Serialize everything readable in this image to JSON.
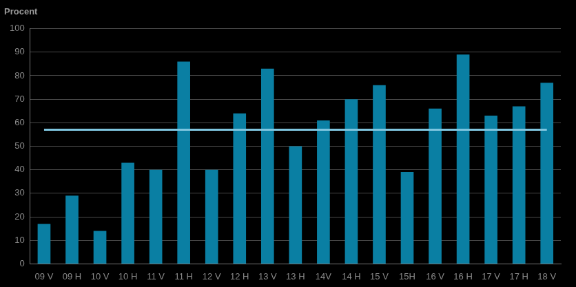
{
  "chart_data": {
    "type": "bar",
    "ylabel": "Procent",
    "categories": [
      "09 V",
      "09 H",
      "10 V",
      "10 H",
      "11 V",
      "11 H",
      "12 V",
      "12 H",
      "13 V",
      "13 H",
      "14V",
      "14 H",
      "15 V",
      "15H",
      "16 V",
      "16 H",
      "17 V",
      "17 H",
      "18 V"
    ],
    "series": [
      {
        "type": "bar",
        "color": "#0a7fa3",
        "values": [
          17,
          29,
          14,
          43,
          40,
          86,
          40,
          64,
          83,
          50,
          61,
          70,
          76,
          39,
          66,
          89,
          63,
          67,
          77
        ]
      },
      {
        "type": "line",
        "color": "#7fc6e0",
        "values": [
          57,
          57,
          57,
          57,
          57,
          57,
          57,
          57,
          57,
          57,
          57,
          57,
          57,
          57,
          57,
          57,
          57,
          57,
          57
        ]
      }
    ],
    "ylim": [
      0,
      100
    ],
    "yticks": [
      0,
      10,
      20,
      30,
      40,
      50,
      60,
      70,
      80,
      90,
      100
    ],
    "grid": true
  }
}
